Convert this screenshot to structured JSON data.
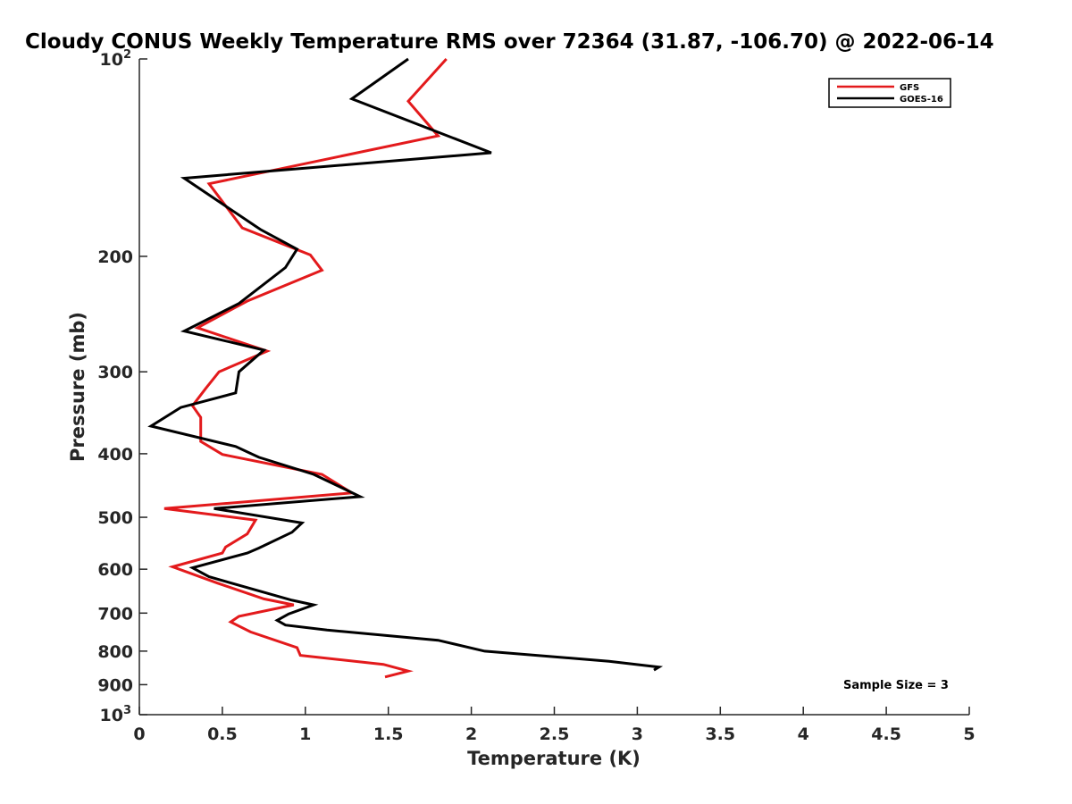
{
  "chart_data": {
    "type": "line",
    "title": "Cloudy CONUS Weekly Temperature RMS over 72364 (31.87, -106.70) @ 2022-06-14",
    "xlabel": "Temperature (K)",
    "ylabel": "Pressure (mb)",
    "xlim": [
      0,
      5
    ],
    "ylim": [
      100,
      1000
    ],
    "yscale": "log",
    "yaxis_reversed": true,
    "grid": false,
    "legend_position": "top-right",
    "x_ticks": [
      "0",
      "0.5",
      "1",
      "1.5",
      "2",
      "2.5",
      "3",
      "3.5",
      "4",
      "4.5",
      "5"
    ],
    "y_ticks": [
      {
        "value": 100,
        "base": "10",
        "exp": "2",
        "label": ""
      },
      {
        "value": 200,
        "label": "200"
      },
      {
        "value": 300,
        "label": "300"
      },
      {
        "value": 400,
        "label": "400"
      },
      {
        "value": 500,
        "label": "500"
      },
      {
        "value": 600,
        "label": "600"
      },
      {
        "value": 700,
        "label": "700"
      },
      {
        "value": 800,
        "label": "800"
      },
      {
        "value": 900,
        "label": "900"
      },
      {
        "value": 1000,
        "base": "10",
        "exp": "3",
        "label": ""
      }
    ],
    "annotation": "Sample Size = 3",
    "series": [
      {
        "name": "GFS",
        "color": "#e31a1c",
        "points": [
          [
            1.85,
            100
          ],
          [
            1.62,
            116
          ],
          [
            1.8,
            131
          ],
          [
            0.42,
            155
          ],
          [
            0.62,
            181
          ],
          [
            1.03,
            199
          ],
          [
            1.1,
            210
          ],
          [
            0.65,
            234
          ],
          [
            0.35,
            257
          ],
          [
            0.77,
            279
          ],
          [
            0.48,
            300
          ],
          [
            0.4,
            318
          ],
          [
            0.32,
            338
          ],
          [
            0.37,
            352
          ],
          [
            0.37,
            383
          ],
          [
            0.5,
            401
          ],
          [
            1.1,
            430
          ],
          [
            1.28,
            459
          ],
          [
            0.15,
            485
          ],
          [
            0.7,
            505
          ],
          [
            0.65,
            530
          ],
          [
            0.52,
            555
          ],
          [
            0.5,
            567
          ],
          [
            0.2,
            595
          ],
          [
            0.47,
            630
          ],
          [
            0.75,
            666
          ],
          [
            0.93,
            680
          ],
          [
            0.6,
            708
          ],
          [
            0.55,
            722
          ],
          [
            0.67,
            748
          ],
          [
            0.95,
            790
          ],
          [
            0.97,
            812
          ],
          [
            1.47,
            838
          ],
          [
            1.62,
            858
          ],
          [
            1.48,
            876
          ]
        ]
      },
      {
        "name": "GOES-16",
        "color": "#000000",
        "points": [
          [
            1.62,
            100
          ],
          [
            1.28,
            115
          ],
          [
            2.12,
            139
          ],
          [
            0.27,
            152
          ],
          [
            0.73,
            182
          ],
          [
            0.95,
            195
          ],
          [
            0.88,
            208
          ],
          [
            0.6,
            236
          ],
          [
            0.27,
            260
          ],
          [
            0.75,
            278
          ],
          [
            0.6,
            300
          ],
          [
            0.58,
            323
          ],
          [
            0.25,
            340
          ],
          [
            0.07,
            363
          ],
          [
            0.58,
            390
          ],
          [
            0.72,
            405
          ],
          [
            1.05,
            430
          ],
          [
            1.23,
            452
          ],
          [
            1.33,
            465
          ],
          [
            0.45,
            485
          ],
          [
            0.98,
            510
          ],
          [
            0.92,
            527
          ],
          [
            0.72,
            557
          ],
          [
            0.65,
            567
          ],
          [
            0.32,
            597
          ],
          [
            0.42,
            616
          ],
          [
            0.92,
            669
          ],
          [
            1.05,
            680
          ],
          [
            0.9,
            702
          ],
          [
            0.83,
            718
          ],
          [
            0.88,
            730
          ],
          [
            1.13,
            743
          ],
          [
            1.8,
            770
          ],
          [
            2.08,
            800
          ],
          [
            2.83,
            829
          ],
          [
            3.13,
            846
          ],
          [
            3.1,
            855
          ]
        ]
      }
    ]
  }
}
